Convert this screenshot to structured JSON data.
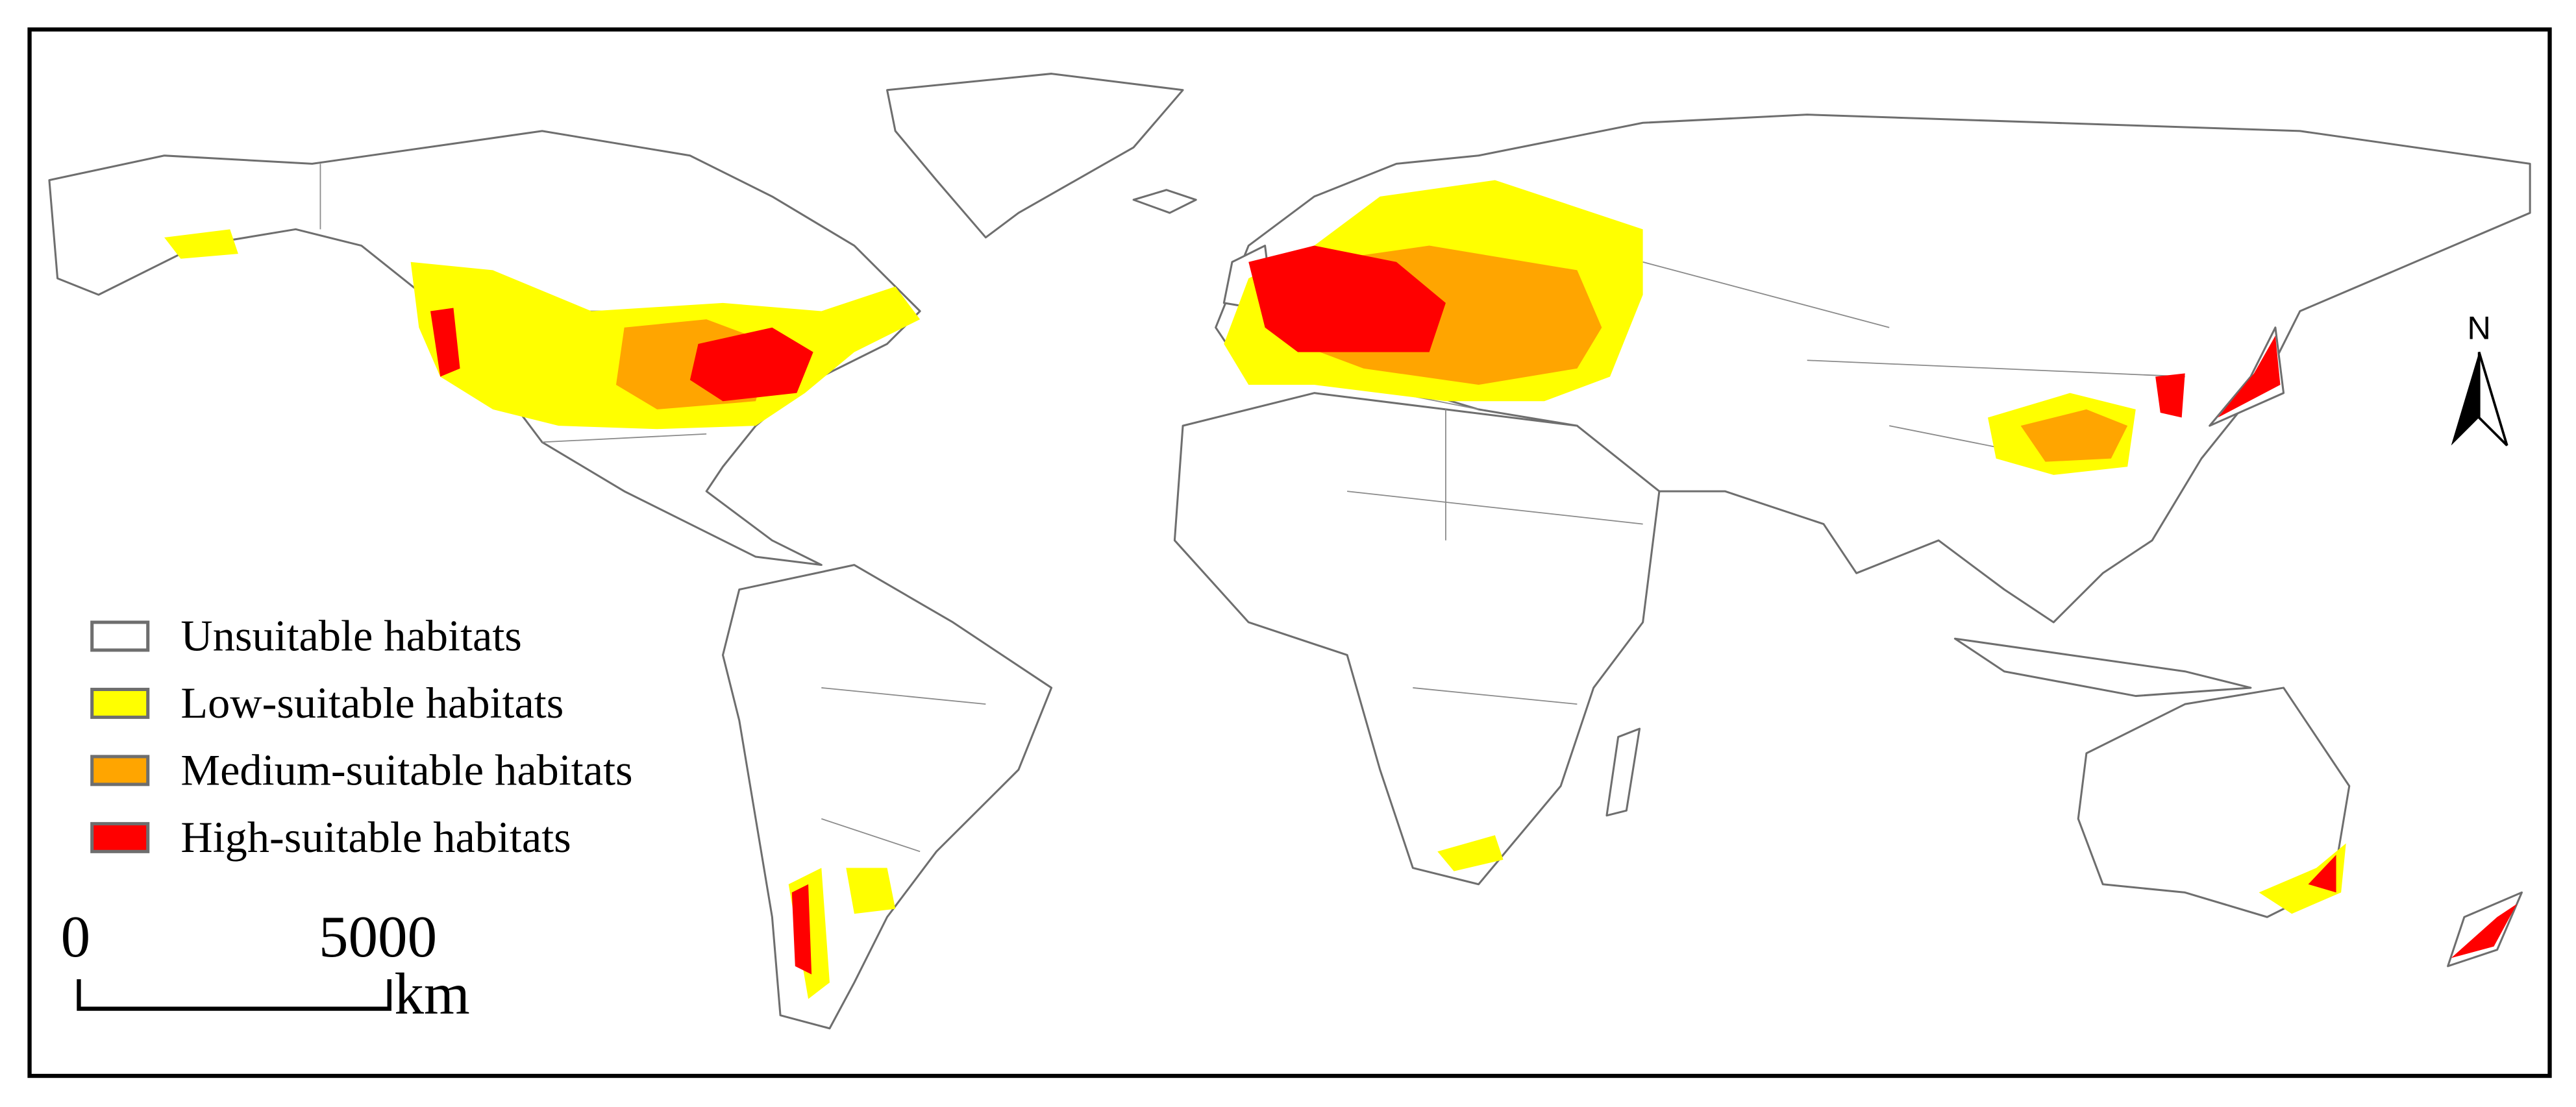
{
  "legend": {
    "items": [
      {
        "label": "Unsuitable habitats",
        "color": "#ffffff"
      },
      {
        "label": "Low-suitable habitats",
        "color": "#ffff00"
      },
      {
        "label": "Medium-suitable habitats",
        "color": "#ffa500"
      },
      {
        "label": "High-suitable habitats",
        "color": "#ff0000"
      }
    ]
  },
  "scale_bar": {
    "start": "0",
    "end": "5000",
    "unit": "km"
  },
  "north_arrow": {
    "label": "N"
  }
}
